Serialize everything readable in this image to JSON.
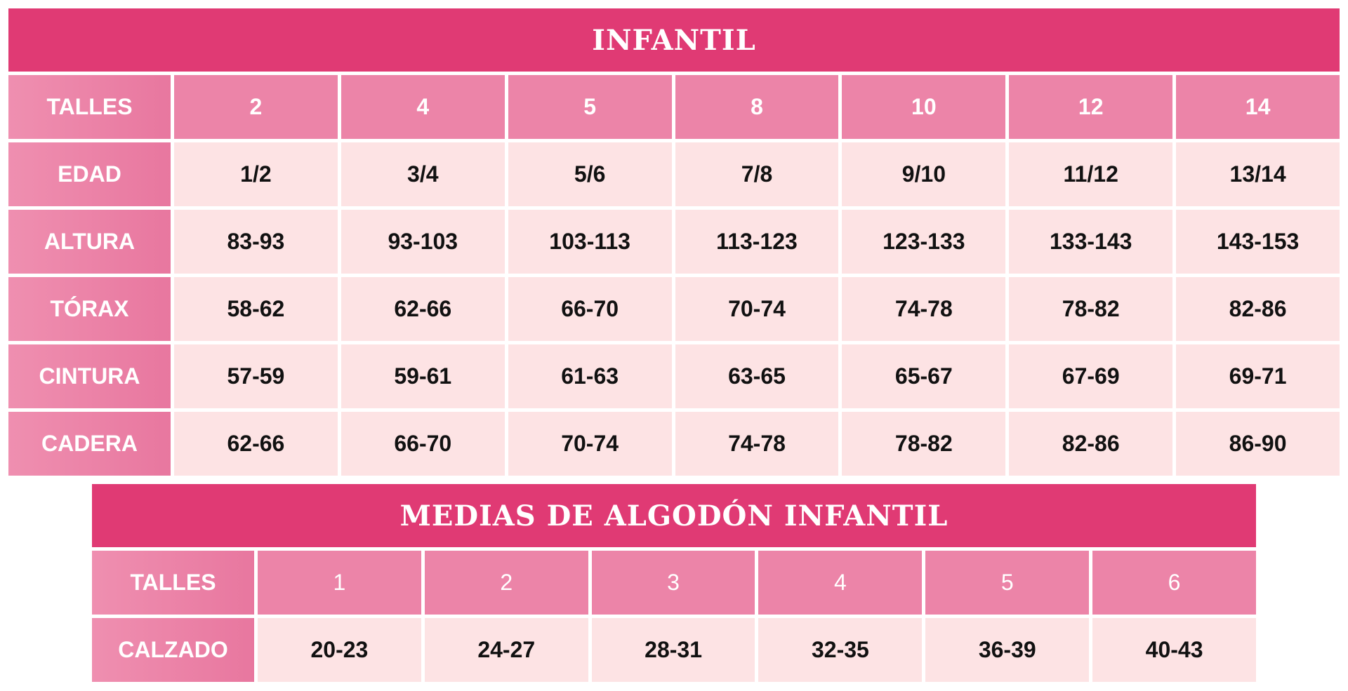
{
  "infantil": {
    "title": "INFANTIL",
    "header": {
      "label": "TALLES",
      "sizes": [
        "2",
        "4",
        "5",
        "8",
        "10",
        "12",
        "14"
      ]
    },
    "rows": [
      {
        "label": "EDAD",
        "values": [
          "1/2",
          "3/4",
          "5/6",
          "7/8",
          "9/10",
          "11/12",
          "13/14"
        ]
      },
      {
        "label": "ALTURA",
        "values": [
          "83-93",
          "93-103",
          "103-113",
          "113-123",
          "123-133",
          "133-143",
          "143-153"
        ]
      },
      {
        "label": "TÓRAX",
        "values": [
          "58-62",
          "62-66",
          "66-70",
          "70-74",
          "74-78",
          "78-82",
          "82-86"
        ]
      },
      {
        "label": "CINTURA",
        "values": [
          "57-59",
          "59-61",
          "61-63",
          "63-65",
          "65-67",
          "67-69",
          "69-71"
        ]
      },
      {
        "label": "CADERA",
        "values": [
          "62-66",
          "66-70",
          "70-74",
          "74-78",
          "78-82",
          "82-86",
          "86-90"
        ]
      }
    ]
  },
  "medias": {
    "title": "MEDIAS DE ALGODÓN INFANTIL",
    "header": {
      "label": "TALLES",
      "sizes": [
        "1",
        "2",
        "3",
        "4",
        "5",
        "6"
      ]
    },
    "rows": [
      {
        "label": "CALZADO",
        "values": [
          "20-23",
          "24-27",
          "28-31",
          "32-35",
          "36-39",
          "40-43"
        ]
      }
    ]
  },
  "colors": {
    "title_bar": "#e03a74",
    "header_cell": "#ec84a8",
    "value_cell": "#fde3e4",
    "value_text": "#111111",
    "header_text": "#ffffff"
  }
}
